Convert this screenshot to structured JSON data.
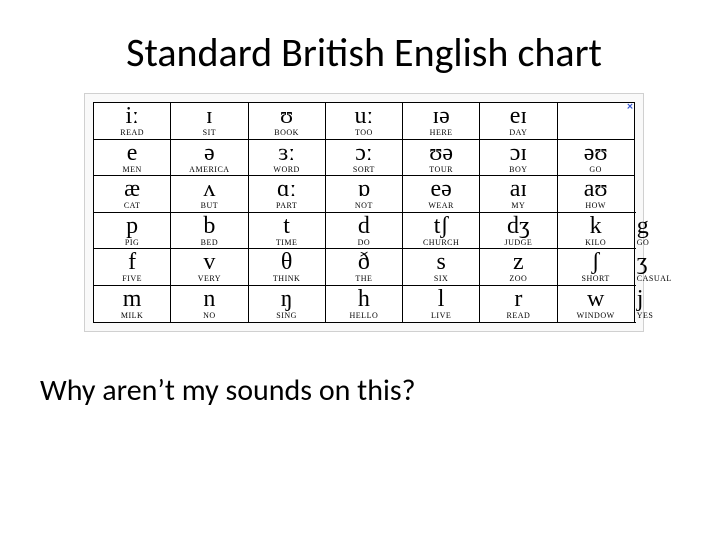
{
  "title": "Standard British English chart",
  "question": "Why aren’t my sounds on this?",
  "close_icon": "×",
  "chart": {
    "background": "#ffffff",
    "border_color": "#000000",
    "symbol_font": "Times New Roman",
    "symbol_fontsize": 28,
    "word_fontsize": 8,
    "vowel_cols": 7,
    "consonant_cols": 8,
    "rows": [
      {
        "type": "vowel",
        "cells": [
          {
            "sym": "iː",
            "word": "READ"
          },
          {
            "sym": "ɪ",
            "word": "SIT"
          },
          {
            "sym": "ʊ",
            "word": "BOOK"
          },
          {
            "sym": "uː",
            "word": "TOO"
          },
          {
            "sym": "ɪə",
            "word": "HERE"
          },
          {
            "sym": "eɪ",
            "word": "DAY"
          },
          {
            "sym": "",
            "word": ""
          }
        ]
      },
      {
        "type": "vowel",
        "cells": [
          {
            "sym": "e",
            "word": "MEN"
          },
          {
            "sym": "ə",
            "word": "AMERICA"
          },
          {
            "sym": "ɜː",
            "word": "WORD"
          },
          {
            "sym": "ɔː",
            "word": "SORT"
          },
          {
            "sym": "ʊə",
            "word": "TOUR"
          },
          {
            "sym": "ɔɪ",
            "word": "BOY"
          },
          {
            "sym": "əʊ",
            "word": "GO"
          }
        ]
      },
      {
        "type": "vowel",
        "cells": [
          {
            "sym": "æ",
            "word": "CAT"
          },
          {
            "sym": "ʌ",
            "word": "BUT"
          },
          {
            "sym": "ɑː",
            "word": "PART"
          },
          {
            "sym": "ɒ",
            "word": "NOT"
          },
          {
            "sym": "eə",
            "word": "WEAR"
          },
          {
            "sym": "aɪ",
            "word": "MY"
          },
          {
            "sym": "aʊ",
            "word": "HOW"
          }
        ]
      },
      {
        "type": "cons",
        "cells": [
          {
            "sym": "p",
            "word": "PIG"
          },
          {
            "sym": "b",
            "word": "BED"
          },
          {
            "sym": "t",
            "word": "TIME"
          },
          {
            "sym": "d",
            "word": "DO"
          },
          {
            "sym": "tʃ",
            "word": "CHURCH"
          },
          {
            "sym": "dʒ",
            "word": "JUDGE"
          },
          {
            "sym": "k",
            "word": "KILO"
          },
          {
            "sym": "g",
            "word": "GO"
          }
        ]
      },
      {
        "type": "cons",
        "cells": [
          {
            "sym": "f",
            "word": "FIVE"
          },
          {
            "sym": "v",
            "word": "VERY"
          },
          {
            "sym": "θ",
            "word": "THINK"
          },
          {
            "sym": "ð",
            "word": "THE"
          },
          {
            "sym": "s",
            "word": "SIX"
          },
          {
            "sym": "z",
            "word": "ZOO"
          },
          {
            "sym": "ʃ",
            "word": "SHORT"
          },
          {
            "sym": "ʒ",
            "word": "CASUAL"
          }
        ]
      },
      {
        "type": "cons",
        "cells": [
          {
            "sym": "m",
            "word": "MILK"
          },
          {
            "sym": "n",
            "word": "NO"
          },
          {
            "sym": "ŋ",
            "word": "SING"
          },
          {
            "sym": "h",
            "word": "HELLO"
          },
          {
            "sym": "l",
            "word": "LIVE"
          },
          {
            "sym": "r",
            "word": "READ"
          },
          {
            "sym": "w",
            "word": "WINDOW"
          },
          {
            "sym": "j",
            "word": "YES"
          }
        ]
      }
    ]
  }
}
